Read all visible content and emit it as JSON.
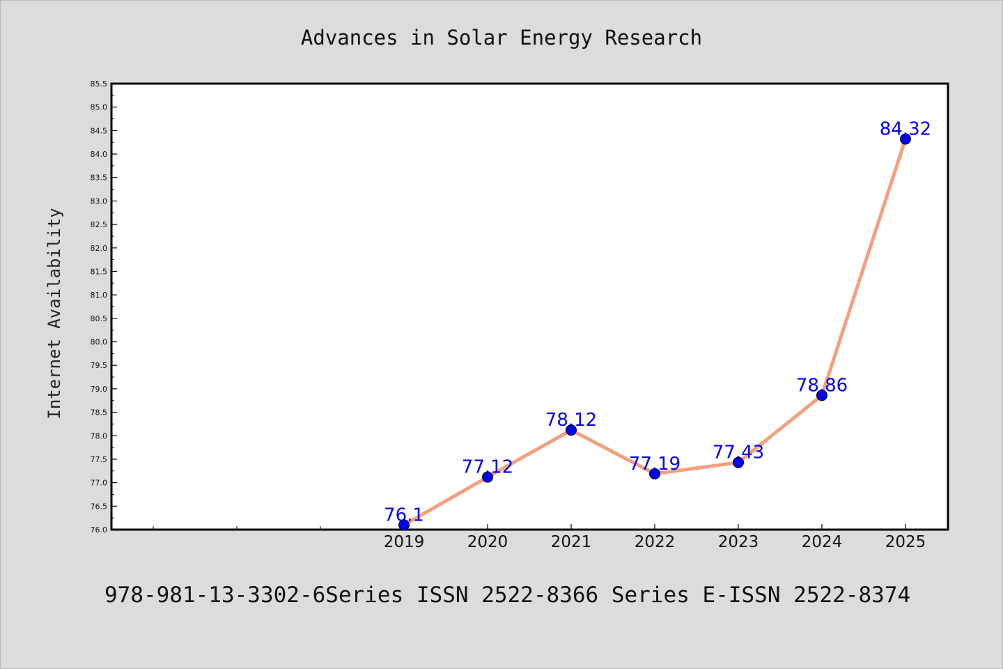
{
  "chart_data": {
    "type": "line",
    "title": "Advances in Solar Energy Research",
    "xlabel": "",
    "ylabel": "Internet Availability",
    "x": [
      "2019",
      "2020",
      "2021",
      "2022",
      "2023",
      "2024",
      "2025"
    ],
    "y": [
      76.1,
      77.12,
      78.12,
      77.19,
      77.43,
      78.86,
      84.32
    ],
    "data_labels": [
      "76.1",
      "77.12",
      "78.12",
      "77.19",
      "77.43",
      "78.86",
      "84.32"
    ],
    "ylim": [
      76.0,
      85.5
    ],
    "y_ticks": [
      "76.0",
      "76.5",
      "77.0",
      "77.5",
      "78.0",
      "78.5",
      "79.0",
      "79.5",
      "80.0",
      "80.5",
      "81.0",
      "81.5",
      "82.0",
      "82.5",
      "83.0",
      "83.5",
      "84.0",
      "84.5",
      "85.0",
      "85.5"
    ],
    "grid": false,
    "colors": {
      "line": "#f4a07e",
      "marker": "#0000ee",
      "label": "#0000ee"
    }
  },
  "footer": "978-981-13-3302-6Series ISSN 2522-8366 Series E-ISSN 2522-8374"
}
